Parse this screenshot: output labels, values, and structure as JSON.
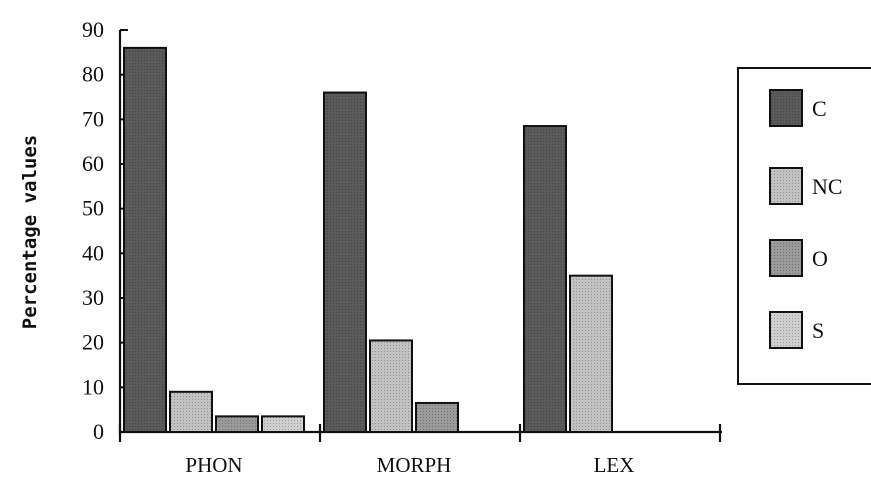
{
  "chart_data": {
    "type": "bar",
    "ylabel": "Percentage values",
    "xlabel": "",
    "title": "",
    "categories": [
      "PHON",
      "MORPH",
      "LEX"
    ],
    "ylim": [
      0,
      90
    ],
    "yticks": [
      "0",
      "10",
      "20",
      "30",
      "40",
      "50",
      "60",
      "70",
      "80",
      "90"
    ],
    "grid": false,
    "legend_position": "right",
    "series": [
      {
        "name": "C",
        "values": [
          86,
          76,
          68.5
        ],
        "color": "#5a5a5a"
      },
      {
        "name": "NC",
        "values": [
          9,
          20.5,
          35
        ],
        "color": "#c2c2c2"
      },
      {
        "name": "O",
        "values": [
          3.5,
          6.5,
          null
        ],
        "color": "#9a9a9a"
      },
      {
        "name": "S",
        "values": [
          3.5,
          null,
          null
        ],
        "color": "#cfcfcf"
      }
    ]
  }
}
